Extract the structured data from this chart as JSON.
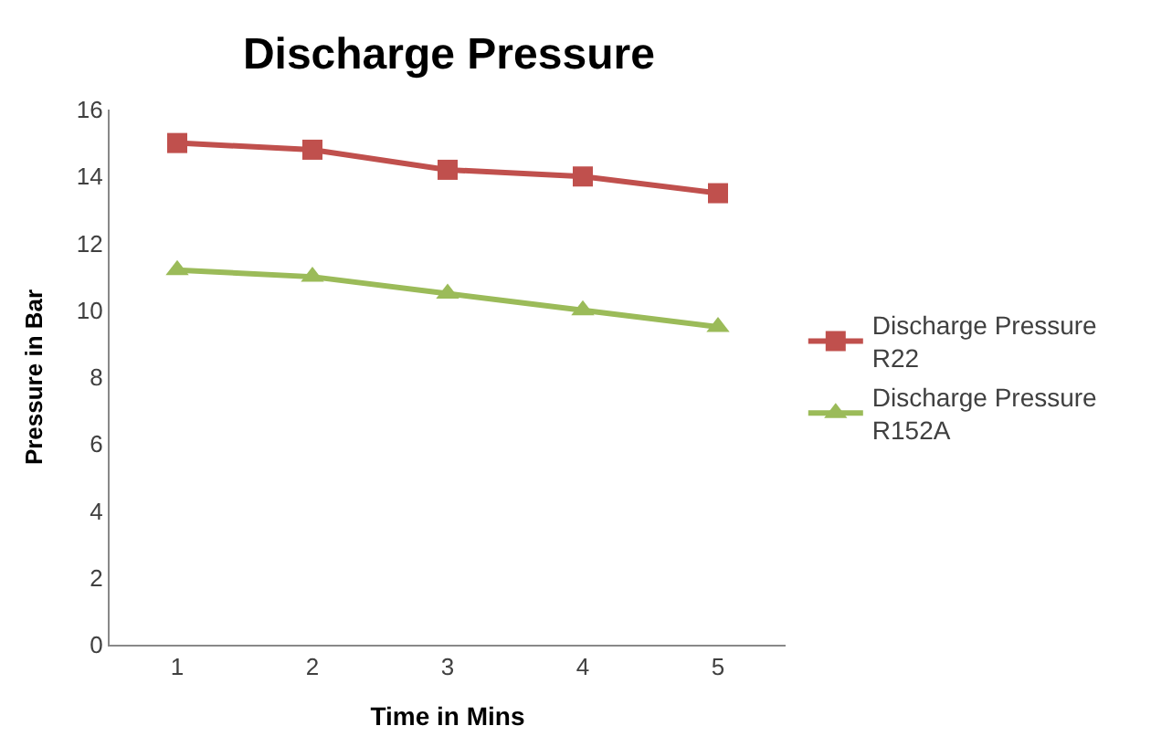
{
  "chart_data": {
    "type": "line",
    "title": "Discharge Pressure",
    "xlabel": "Time in Mins",
    "ylabel": "Pressure in Bar",
    "categories": [
      "1",
      "2",
      "3",
      "4",
      "5"
    ],
    "series": [
      {
        "name": "Discharge Pressure R22",
        "color": "#c0504d",
        "marker": "square",
        "values": [
          15.0,
          14.8,
          14.2,
          14.0,
          13.5
        ]
      },
      {
        "name": "Discharge Pressure R152A",
        "color": "#9bbb59",
        "marker": "triangle",
        "values": [
          11.2,
          11.0,
          10.5,
          10.0,
          9.5
        ]
      }
    ],
    "ylim": [
      0,
      16
    ],
    "yticks": [
      0,
      2,
      4,
      6,
      8,
      10,
      12,
      14,
      16
    ],
    "legend": "right"
  }
}
